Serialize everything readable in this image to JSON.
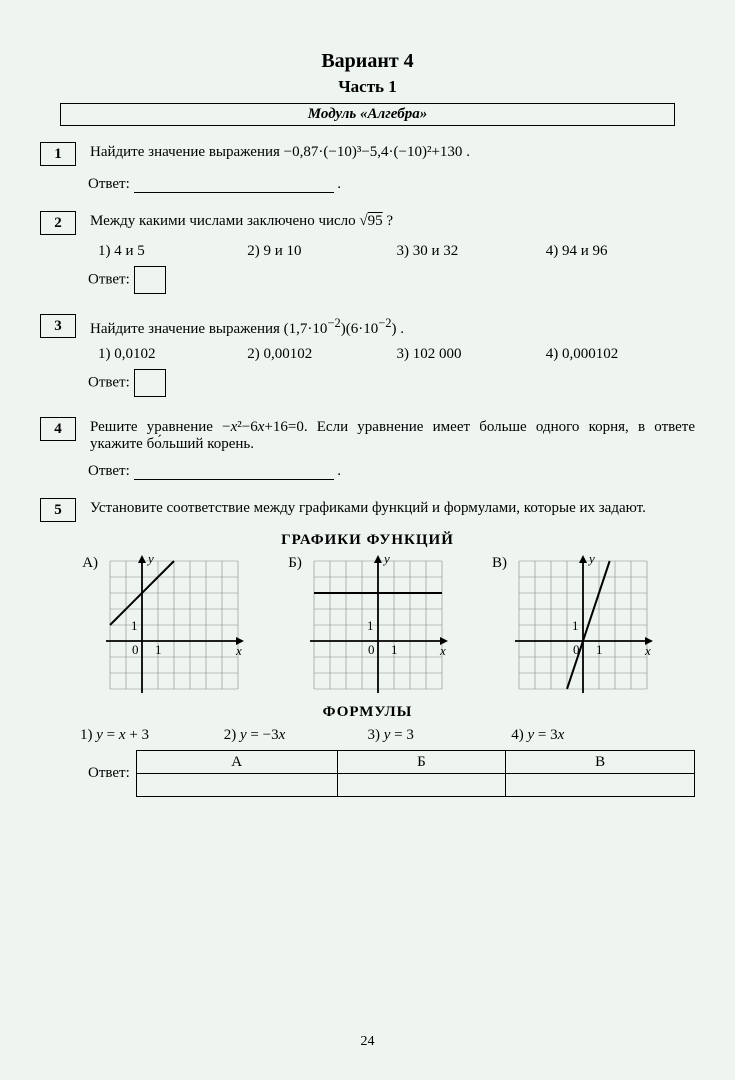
{
  "title": "Вариант 4",
  "part": "Часть 1",
  "module": "Модуль «Алгебра»",
  "page_number": "24",
  "answer_label": "Ответ:",
  "q1": {
    "num": "1",
    "text_prefix": "Найдите значение выражения ",
    "expr": "−0,87·(−10)³−5,4·(−10)²+130"
  },
  "q2": {
    "num": "2",
    "text_prefix": "Между какими числами заключено число ",
    "expr_tail": " ?",
    "opts": [
      "1)  4 и 5",
      "2)  9 и 10",
      "3)  30 и 32",
      "4)  94 и 96"
    ]
  },
  "q3": {
    "num": "3",
    "text_prefix": "Найдите значение выражения ",
    "opts": [
      "1)   0,0102",
      "2)   0,00102",
      "3)   102 000",
      "4)   0,000102"
    ]
  },
  "q4": {
    "num": "4",
    "text": "Решите уравнение −x²−6x+16=0. Если уравнение имеет больше одного корня, в ответе укажите бо́льший корень."
  },
  "q5": {
    "num": "5",
    "text": "Установите соответствие между графиками функций и формулами, которые их задают.",
    "graphs_title": "ГРАФИКИ ФУНКЦИЙ",
    "labels": [
      "А)",
      "Б)",
      "В)"
    ],
    "formulas_title": "ФОРМУЛЫ",
    "formulas": [
      "1)   y = x + 3",
      "2)   y = −3x",
      "3)   y = 3",
      "4)   y = 3x"
    ],
    "table_headers": [
      "А",
      "Б",
      "В"
    ]
  },
  "graphs": {
    "cell": 16,
    "cols": 8,
    "rows": 8,
    "axis_color": "#000",
    "grid_color": "#888",
    "line_color": "#000",
    "line_width": 2,
    "A": {
      "origin_col": 2,
      "origin_row": 5,
      "type": "line",
      "slope": 1,
      "intercept": 3
    },
    "B": {
      "origin_col": 4,
      "origin_row": 5,
      "type": "hline",
      "yval": 3
    },
    "C": {
      "origin_col": 4,
      "origin_row": 5,
      "type": "line",
      "slope": 3,
      "intercept": 0
    }
  }
}
